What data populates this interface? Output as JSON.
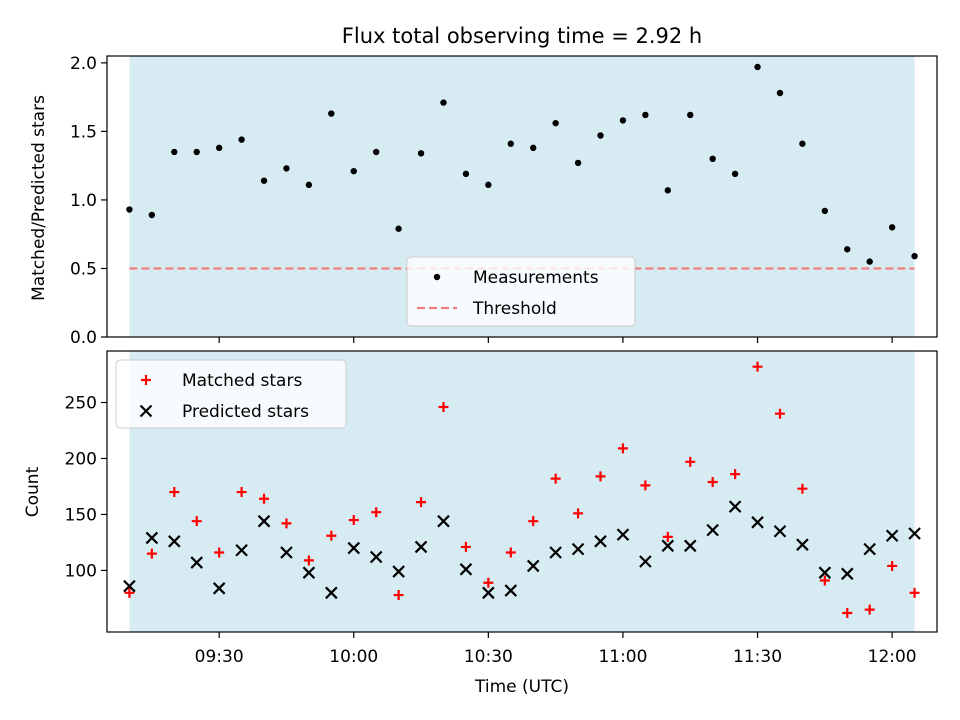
{
  "chart_data": [
    {
      "type": "scatter",
      "title": "Flux total observing time = 2.92 h",
      "ylabel": "Matched/Predicted stars",
      "xlabel": "",
      "ylim": [
        0,
        2.05
      ],
      "yticks": [
        "0.0",
        "0.5",
        "1.0",
        "1.5",
        "2.0"
      ],
      "xticks": [
        "09:30",
        "10:00",
        "10:30",
        "11:00",
        "11:30",
        "12:00"
      ],
      "observing_window": [
        "09:10",
        "12:05"
      ],
      "grid": false,
      "legend": "lower-center",
      "threshold": {
        "name": "Threshold",
        "value": 0.5,
        "color": "#f08080"
      },
      "series": [
        {
          "name": "Measurements",
          "color": "#000000",
          "x": [
            "09:10",
            "09:15",
            "09:20",
            "09:25",
            "09:30",
            "09:35",
            "09:40",
            "09:45",
            "09:50",
            "09:55",
            "10:00",
            "10:05",
            "10:10",
            "10:15",
            "10:20",
            "10:25",
            "10:30",
            "10:35",
            "10:40",
            "10:45",
            "10:50",
            "10:55",
            "11:00",
            "11:05",
            "11:10",
            "11:15",
            "11:20",
            "11:25",
            "11:30",
            "11:35",
            "11:40",
            "11:45",
            "11:50",
            "11:55",
            "12:00",
            "12:05"
          ],
          "y": [
            0.93,
            0.89,
            1.35,
            1.35,
            1.38,
            1.44,
            1.14,
            1.23,
            1.11,
            1.63,
            1.21,
            1.35,
            0.79,
            1.34,
            1.71,
            1.19,
            1.11,
            1.41,
            1.38,
            1.56,
            1.27,
            1.47,
            1.58,
            1.62,
            1.07,
            1.62,
            1.3,
            1.19,
            1.97,
            1.78,
            1.41,
            0.92,
            0.64,
            0.55,
            0.8,
            0.59
          ]
        }
      ]
    },
    {
      "type": "scatter",
      "title": "",
      "ylabel": "Count",
      "xlabel": "Time (UTC)",
      "ylim": [
        45,
        296
      ],
      "yticks": [
        "100",
        "150",
        "200",
        "250"
      ],
      "xticks": [
        "09:30",
        "10:00",
        "10:30",
        "11:00",
        "11:30",
        "12:00"
      ],
      "observing_window": [
        "09:10",
        "12:05"
      ],
      "grid": false,
      "legend": "top-left",
      "series": [
        {
          "name": "Matched stars",
          "marker": "+",
          "color": "#ff0000",
          "x": [
            "09:10",
            "09:15",
            "09:20",
            "09:25",
            "09:30",
            "09:35",
            "09:40",
            "09:45",
            "09:50",
            "09:55",
            "10:00",
            "10:05",
            "10:10",
            "10:15",
            "10:20",
            "10:25",
            "10:30",
            "10:35",
            "10:40",
            "10:45",
            "10:50",
            "10:55",
            "11:00",
            "11:05",
            "11:10",
            "11:15",
            "11:20",
            "11:25",
            "11:30",
            "11:35",
            "11:40",
            "11:45",
            "11:50",
            "11:55",
            "12:00",
            "12:05"
          ],
          "y": [
            80,
            115,
            170,
            144,
            116,
            170,
            164,
            142,
            109,
            131,
            145,
            152,
            78,
            161,
            246,
            121,
            89,
            116,
            144,
            182,
            151,
            184,
            209,
            176,
            130,
            197,
            179,
            186,
            282,
            240,
            173,
            91,
            62,
            65,
            104,
            80
          ]
        },
        {
          "name": "Predicted stars",
          "marker": "x",
          "color": "#000000",
          "x": [
            "09:10",
            "09:15",
            "09:20",
            "09:25",
            "09:30",
            "09:35",
            "09:40",
            "09:45",
            "09:50",
            "09:55",
            "10:00",
            "10:05",
            "10:10",
            "10:15",
            "10:20",
            "10:25",
            "10:30",
            "10:35",
            "10:40",
            "10:45",
            "10:50",
            "10:55",
            "11:00",
            "11:05",
            "11:10",
            "11:15",
            "11:20",
            "11:25",
            "11:30",
            "11:35",
            "11:40",
            "11:45",
            "11:50",
            "11:55",
            "12:00",
            "12:05"
          ],
          "y": [
            86,
            129,
            126,
            107,
            84,
            118,
            144,
            116,
            98,
            80,
            120,
            112,
            99,
            121,
            144,
            101,
            80,
            82,
            104,
            116,
            119,
            126,
            132,
            108,
            122,
            122,
            136,
            157,
            143,
            135,
            123,
            98,
            97,
            119,
            131,
            133
          ]
        }
      ]
    }
  ]
}
